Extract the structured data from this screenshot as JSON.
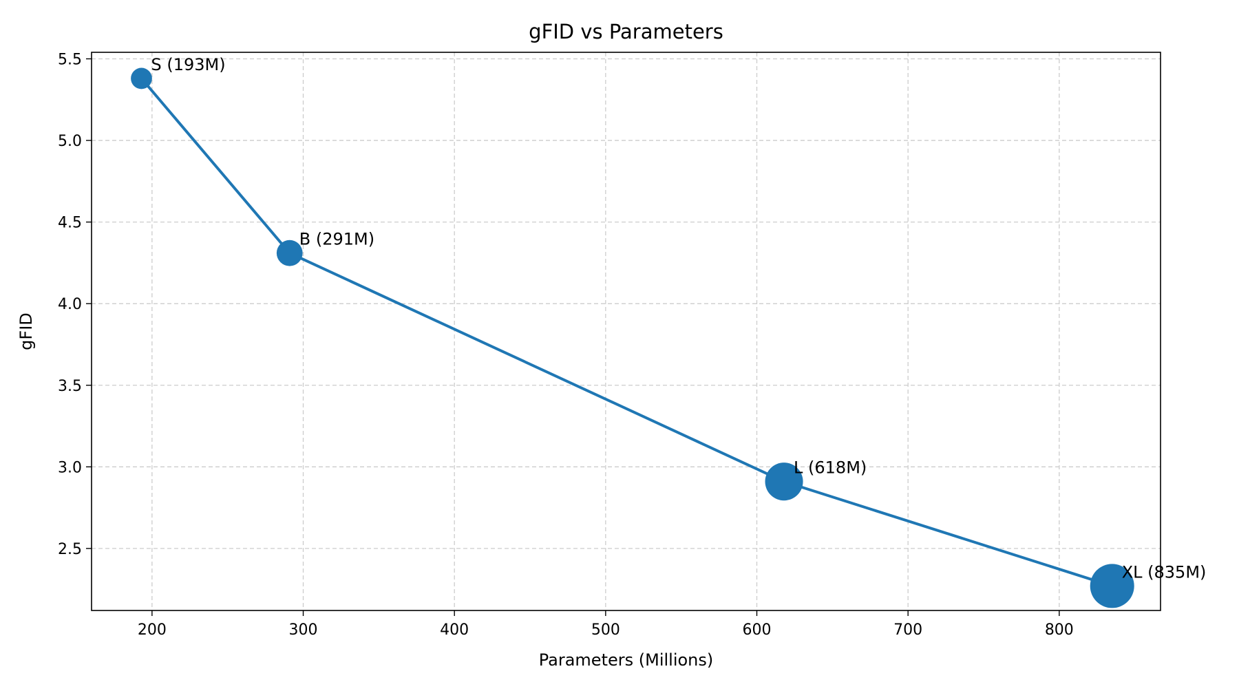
{
  "chart_data": {
    "type": "scatter",
    "title": "gFID vs Parameters",
    "xlabel": "Parameters (Millions)",
    "ylabel": "gFID",
    "xlim": [
      160,
      867
    ],
    "ylim": [
      2.12,
      5.54
    ],
    "x_ticks": [
      200,
      300,
      400,
      500,
      600,
      700,
      800
    ],
    "x_tick_labels": [
      "200",
      "300",
      "400",
      "500",
      "600",
      "700",
      "800"
    ],
    "y_ticks": [
      2.5,
      3.0,
      3.5,
      4.0,
      4.5,
      5.0,
      5.5
    ],
    "y_tick_labels": [
      "2.5",
      "3.0",
      "3.5",
      "4.0",
      "4.5",
      "5.0",
      "5.5"
    ],
    "grid": true,
    "grid_style": "dashed",
    "legend": "none",
    "series": [
      {
        "color": "#1f77b4",
        "connected": true,
        "marker_size_encodes": "parameters",
        "points": [
          {
            "x": 193,
            "y": 5.38,
            "label": "S (193M)"
          },
          {
            "x": 291,
            "y": 4.31,
            "label": "B (291M)"
          },
          {
            "x": 618,
            "y": 2.91,
            "label": "L (618M)"
          },
          {
            "x": 835,
            "y": 2.27,
            "label": "XL (835M)"
          }
        ]
      }
    ]
  }
}
